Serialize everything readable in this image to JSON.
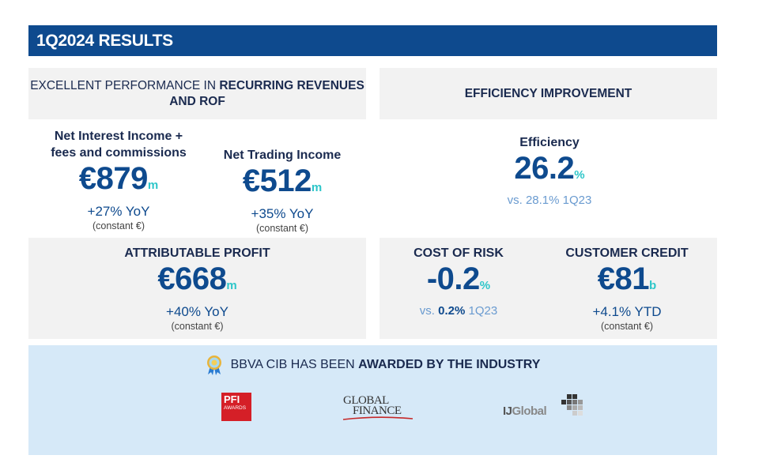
{
  "title": "1Q2024 RESULTS",
  "left_section": {
    "header_regular": "EXCELLENT PERFORMANCE IN",
    "header_bold": "RECURRING REVENUES AND ROF",
    "nii": {
      "label": "Net Interest Income + fees and commissions",
      "value": "€879",
      "unit": "m",
      "change": "+27% YoY",
      "note": "(constant €)"
    },
    "nti": {
      "label": "Net Trading Income",
      "value": "€512",
      "unit": "m",
      "change": "+35% YoY",
      "note": "(constant €)"
    },
    "profit": {
      "label": "ATTRIBUTABLE PROFIT",
      "value": "€668",
      "unit": "m",
      "change": "+40% YoY",
      "note": "(constant €)"
    }
  },
  "right_section": {
    "header": "EFFICIENCY IMPROVEMENT",
    "efficiency": {
      "label": "Efficiency",
      "value": "26.2",
      "unit": "%",
      "compare_prefix": "vs.",
      "compare_value": "28.1%",
      "compare_period": "1Q23"
    },
    "cost_of_risk": {
      "label": "COST OF RISK",
      "value": "-0.2",
      "unit": "%",
      "compare_prefix": "vs.",
      "compare_value": "0.2%",
      "compare_period": "1Q23"
    },
    "customer_credit": {
      "label": "CUSTOMER CREDIT",
      "value": "€81",
      "unit": "b",
      "change": "+4.1% YTD",
      "note": "(constant €)"
    }
  },
  "awards": {
    "title_regular": "BBVA CIB HAS BEEN",
    "title_bold": "AWARDED BY THE INDUSTRY",
    "logos": {
      "pfi": {
        "line1": "PFI",
        "line2": "AWARDS"
      },
      "global_finance": {
        "line1": "GLOBAL",
        "line2": "FINANCE"
      },
      "ijglobal": {
        "part1": "IJ",
        "part2": "Global"
      }
    }
  },
  "colors": {
    "title_bar": "#0e4a8e",
    "panel": "#f2f2f2",
    "award_bg": "#d6e9f8",
    "accent_unit": "#2dc6c9",
    "compare_text": "#6a9bd0"
  }
}
